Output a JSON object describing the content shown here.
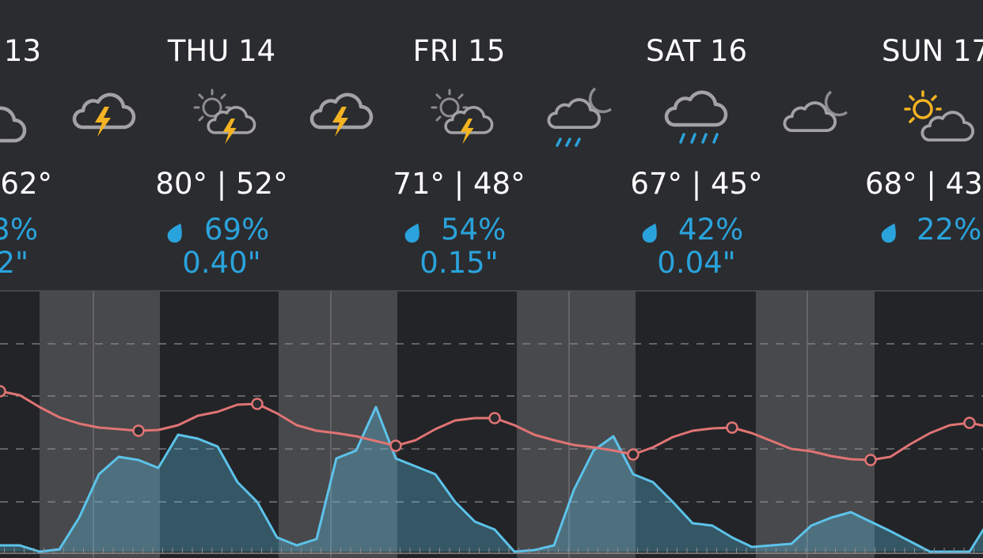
{
  "days": [
    {
      "label": "13",
      "high_low": "62°",
      "chance": "3%",
      "amount": "2\""
    },
    {
      "label": "THU 14",
      "high_low": "80° | 52°",
      "chance": "69%",
      "amount": "0.40\""
    },
    {
      "label": "FRI 15",
      "high_low": "71° | 48°",
      "chance": "54%",
      "amount": "0.15\""
    },
    {
      "label": "SAT 16",
      "high_low": "67° | 45°",
      "chance": "42%",
      "amount": "0.04\""
    },
    {
      "label": "SUN 17",
      "high_low": "68° | 43",
      "chance": "22%"
    }
  ],
  "graph": {
    "ylim": [
      0,
      330
    ],
    "temperature": {
      "color": "#e07474",
      "values": [
        203,
        198,
        183,
        170,
        162,
        157,
        155,
        153,
        154,
        160,
        172,
        177,
        186,
        187,
        175,
        160,
        153,
        150,
        146,
        140,
        134,
        141,
        155,
        166,
        169,
        169,
        160,
        148,
        141,
        135,
        132,
        128,
        123,
        132,
        145,
        153,
        156,
        157,
        150,
        140,
        130,
        127,
        121,
        117,
        116,
        120,
        136,
        150,
        160,
        163,
        158
      ]
    },
    "precipitation": {
      "color": "#5cc3ea",
      "values": [
        8,
        8,
        0,
        3,
        43,
        98,
        120,
        116,
        106,
        148,
        143,
        133,
        88,
        63,
        18,
        8,
        16,
        118,
        128,
        183,
        118,
        108,
        98,
        63,
        38,
        28,
        0,
        2,
        8,
        78,
        128,
        146,
        98,
        88,
        63,
        36,
        33,
        18,
        6,
        8,
        10,
        33,
        43,
        50,
        38,
        26,
        13,
        0,
        0,
        0,
        40
      ]
    }
  }
}
